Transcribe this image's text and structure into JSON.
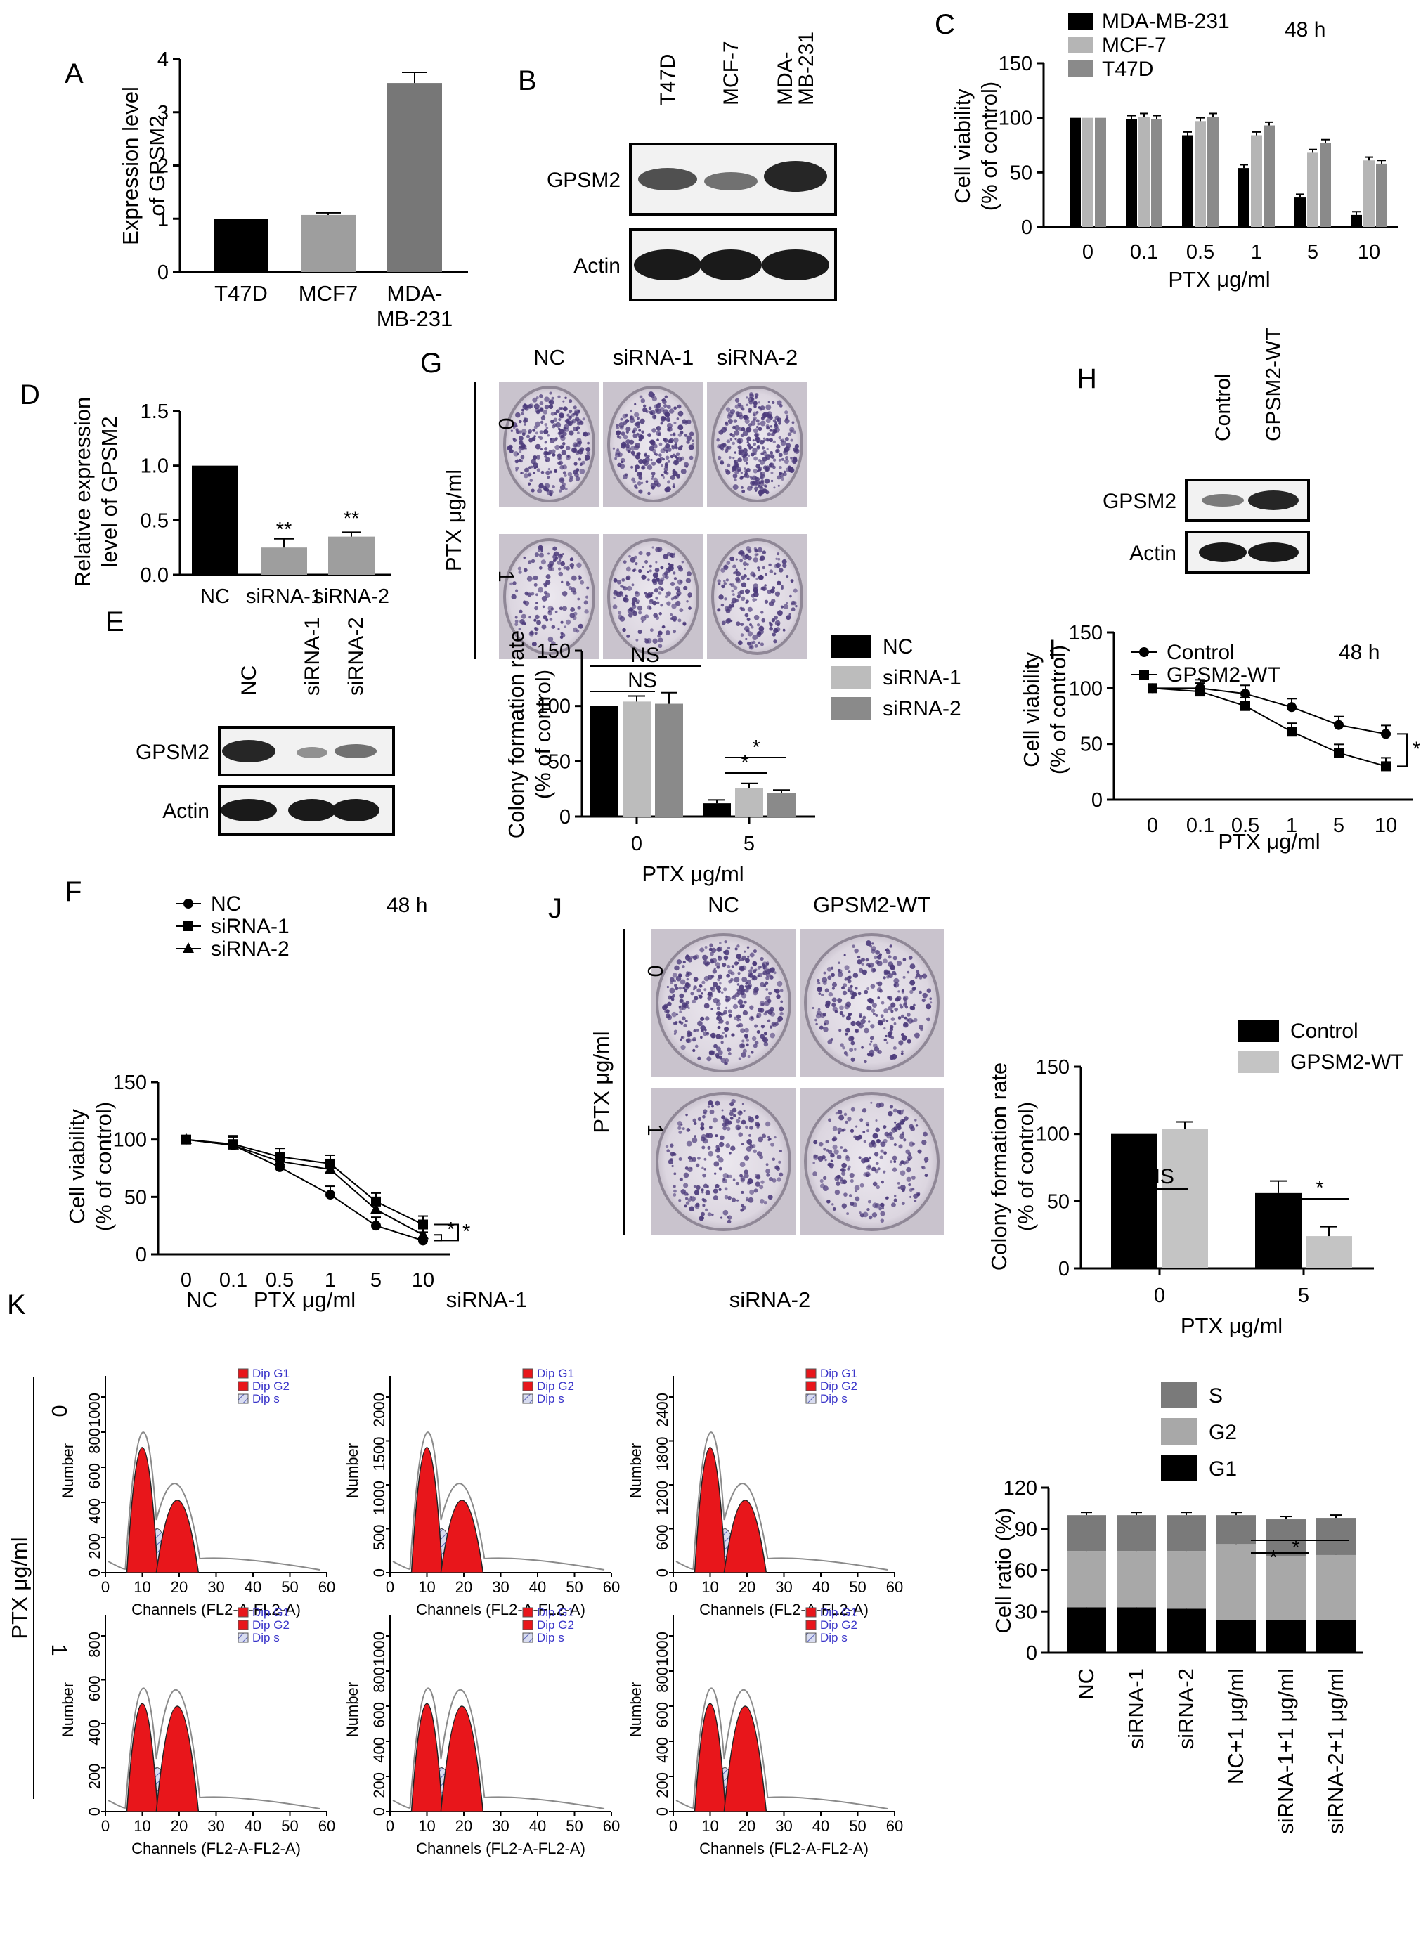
{
  "panels": {
    "A": {
      "letter": "A",
      "ylabel": [
        "Expression level",
        "of GPSM2"
      ],
      "chart_data": {
        "type": "bar",
        "categories": [
          [
            "T47D"
          ],
          [
            "MCF7"
          ],
          [
            "MDA-",
            "MB-231"
          ]
        ],
        "values": [
          1.0,
          1.07,
          3.55
        ],
        "errors": [
          0,
          0.04,
          0.2
        ],
        "ylim": [
          0,
          4
        ],
        "yticks": [
          "0",
          "1",
          "2",
          "3",
          "4"
        ],
        "colors": [
          "#000000",
          "#9e9e9e",
          "#777777"
        ]
      }
    },
    "B": {
      "letter": "B",
      "lanes": [
        [
          "T47D"
        ],
        [
          "MCF-7"
        ],
        [
          "MDA-",
          "MB-231"
        ]
      ],
      "rows": [
        "GPSM2",
        "Actin"
      ]
    },
    "C": {
      "letter": "C",
      "time": "48 h",
      "ylabel": [
        "Cell viability",
        "(% of control)"
      ],
      "xlabel": "PTX μg/ml",
      "chart_data": {
        "type": "bar",
        "categories": [
          "0",
          "0.1",
          "0.5",
          "1",
          "5",
          "10"
        ],
        "ylim": [
          0,
          150
        ],
        "yticks": [
          "0",
          "50",
          "100",
          "150"
        ],
        "series": [
          {
            "name": "MDA-MB-231",
            "color": "#000000",
            "values": [
              100,
              99,
              84,
              54,
              27,
              11
            ]
          },
          {
            "name": "MCF-7",
            "color": "#b5b5b5",
            "values": [
              100,
              101,
              97,
              84,
              68,
              61
            ]
          },
          {
            "name": "T47D",
            "color": "#8a8a8a",
            "values": [
              100,
              99,
              101,
              93,
              77,
              58
            ]
          }
        ]
      }
    },
    "D": {
      "letter": "D",
      "ylabel": [
        "Relative expression",
        "level of GPSM2"
      ],
      "chart_data": {
        "type": "bar",
        "categories": [
          "NC",
          "siRNA-1",
          "siRNA-2"
        ],
        "values": [
          1.0,
          0.25,
          0.35
        ],
        "errors": [
          0,
          0.08,
          0.04
        ],
        "sig": [
          "",
          "**",
          "**"
        ],
        "ylim": [
          0,
          1.5
        ],
        "yticks": [
          "0.0",
          "0.5",
          "1.0",
          "1.5"
        ],
        "colors": [
          "#000000",
          "#9e9e9e",
          "#9e9e9e"
        ]
      }
    },
    "E": {
      "letter": "E",
      "lanes": [
        [
          "NC"
        ],
        [
          "siRNA-1"
        ],
        [
          "siRNA-2"
        ]
      ],
      "rows": [
        "GPSM2",
        "Actin"
      ]
    },
    "F": {
      "letter": "F",
      "time": "48 h",
      "ylabel": [
        "Cell viability",
        "(% of control)"
      ],
      "xlabel": "PTX μg/ml",
      "sig": "*",
      "chart_data": {
        "type": "line",
        "x": [
          "0",
          "0.1",
          "0.5",
          "1",
          "5",
          "10"
        ],
        "ylim": [
          0,
          150
        ],
        "yticks": [
          "0",
          "50",
          "100",
          "150"
        ],
        "series": [
          {
            "name": "NC",
            "marker": "circle",
            "values": [
              100,
              95,
              76,
              52,
              25,
              12
            ]
          },
          {
            "name": "siRNA-1",
            "marker": "square",
            "values": [
              100,
              96,
              85,
              79,
              46,
              26
            ]
          },
          {
            "name": "siRNA-2",
            "marker": "triangle",
            "values": [
              100,
              95,
              81,
              74,
              39,
              17
            ]
          }
        ]
      }
    },
    "G": {
      "letter": "G",
      "cols": [
        "NC",
        "siRNA-1",
        "siRNA-2"
      ],
      "rows": [
        "0",
        "1"
      ],
      "side": "PTX μg/ml",
      "ylabel": [
        "Colony formation rate",
        "(% of control)"
      ],
      "xlabel": "PTX μg/ml",
      "ns1": "NS",
      "ns2": "NS",
      "star1": "*",
      "star2": "*",
      "chart_data": {
        "type": "bar",
        "categories": [
          "0",
          "5"
        ],
        "ylim": [
          0,
          150
        ],
        "yticks": [
          "0",
          "50",
          "100",
          "150"
        ],
        "series": [
          {
            "name": "NC",
            "color": "#000000",
            "values": [
              100,
              12
            ],
            "errors": [
              0,
              3
            ]
          },
          {
            "name": "siRNA-1",
            "color": "#bcbcbc",
            "values": [
              104,
              26
            ],
            "errors": [
              5,
              4
            ]
          },
          {
            "name": "siRNA-2",
            "color": "#8a8a8a",
            "values": [
              102,
              21
            ],
            "errors": [
              10,
              3
            ]
          }
        ]
      }
    },
    "H": {
      "letter": "H",
      "lanes": [
        [
          "Control"
        ],
        [
          "GPSM2-WT"
        ]
      ],
      "rows": [
        "GPSM2",
        "Actin"
      ]
    },
    "I": {
      "letter": "I",
      "time": "48 h",
      "ylabel": [
        "Cell viability",
        "(% of control)"
      ],
      "xlabel": "PTX μg/ml",
      "sig": "*",
      "chart_data": {
        "type": "line",
        "x": [
          "0",
          "0.1",
          "0.5",
          "1",
          "5",
          "10"
        ],
        "ylim": [
          0,
          150
        ],
        "yticks": [
          "0",
          "50",
          "100",
          "150"
        ],
        "series": [
          {
            "name": "Control",
            "marker": "circle",
            "values": [
              100,
              100,
              95,
              83,
              67,
              59
            ]
          },
          {
            "name": "GPSM2-WT",
            "marker": "square",
            "values": [
              100,
              97,
              84,
              61,
              42,
              30
            ]
          }
        ]
      }
    },
    "J": {
      "letter": "J",
      "cols": [
        "NC",
        "GPSM2-WT"
      ],
      "rows": [
        "0",
        "1"
      ],
      "side": "PTX μg/ml",
      "ylabel": [
        "Colony formation rate",
        "(% of control)"
      ],
      "xlabel": "PTX μg/ml",
      "ns": "NS",
      "star": "*",
      "chart_data": {
        "type": "bar",
        "categories": [
          "0",
          "5"
        ],
        "ylim": [
          0,
          150
        ],
        "yticks": [
          "0",
          "50",
          "100",
          "150"
        ],
        "series": [
          {
            "name": "Control",
            "color": "#000000",
            "values": [
              100,
              56
            ],
            "errors": [
              0,
              9
            ]
          },
          {
            "name": "GPSM2-WT",
            "color": "#c4c4c4",
            "values": [
              104,
              24
            ],
            "errors": [
              5,
              7
            ]
          }
        ]
      }
    },
    "K": {
      "letter": "K",
      "cols": [
        "NC",
        "siRNA-1",
        "siRNA-2"
      ],
      "side": "PTX μg/ml",
      "rows": [
        "0",
        "1"
      ],
      "legend_items": [
        "Dip G1",
        "Dip G2",
        "Dip s"
      ],
      "ylabel_hist": "Number",
      "xlabel_hist": "Channels (FL2-A-FL2-A)",
      "xticks_short": [
        "0",
        "10",
        "20",
        "30",
        "40",
        "50",
        "60"
      ],
      "hist_yticks": [
        [
          "0",
          "200",
          "400",
          "600",
          "800",
          "1000"
        ],
        [
          "0",
          "500",
          "1000",
          "1500",
          "2000"
        ],
        [
          "0",
          "600",
          "1200",
          "1800",
          "2400"
        ],
        [
          "0",
          "200",
          "400",
          "600",
          "800"
        ],
        [
          "0",
          "200",
          "400",
          "600",
          "800",
          "1000"
        ],
        [
          "0",
          "200",
          "400",
          "600",
          "800",
          "1000"
        ]
      ],
      "ratio_ylabel": "Cell ratio (%)",
      "star1": "*",
      "star2": "*",
      "chart_data": {
        "type": "bar",
        "stacked": true,
        "categories": [
          "NC",
          "siRNA-1",
          "siRNA-2",
          "NC+1 μg/ml",
          "siRNA-1+1 μg/ml",
          "siRNA-2+1 μg/ml"
        ],
        "ylim": [
          0,
          120
        ],
        "yticks": [
          "0",
          "30",
          "60",
          "90",
          "120"
        ],
        "series": [
          {
            "name": "G1",
            "color": "#000000",
            "values": [
              33,
              33,
              32,
              24,
              24,
              24
            ]
          },
          {
            "name": "G2",
            "color": "#a8a8a8",
            "values": [
              41,
              41,
              42,
              55,
              46,
              47
            ]
          },
          {
            "name": "S",
            "color": "#7a7a7a",
            "values": [
              26,
              26,
              26,
              21,
              27,
              27
            ]
          }
        ],
        "legend_order": [
          "S",
          "G2",
          "G1"
        ]
      }
    }
  }
}
